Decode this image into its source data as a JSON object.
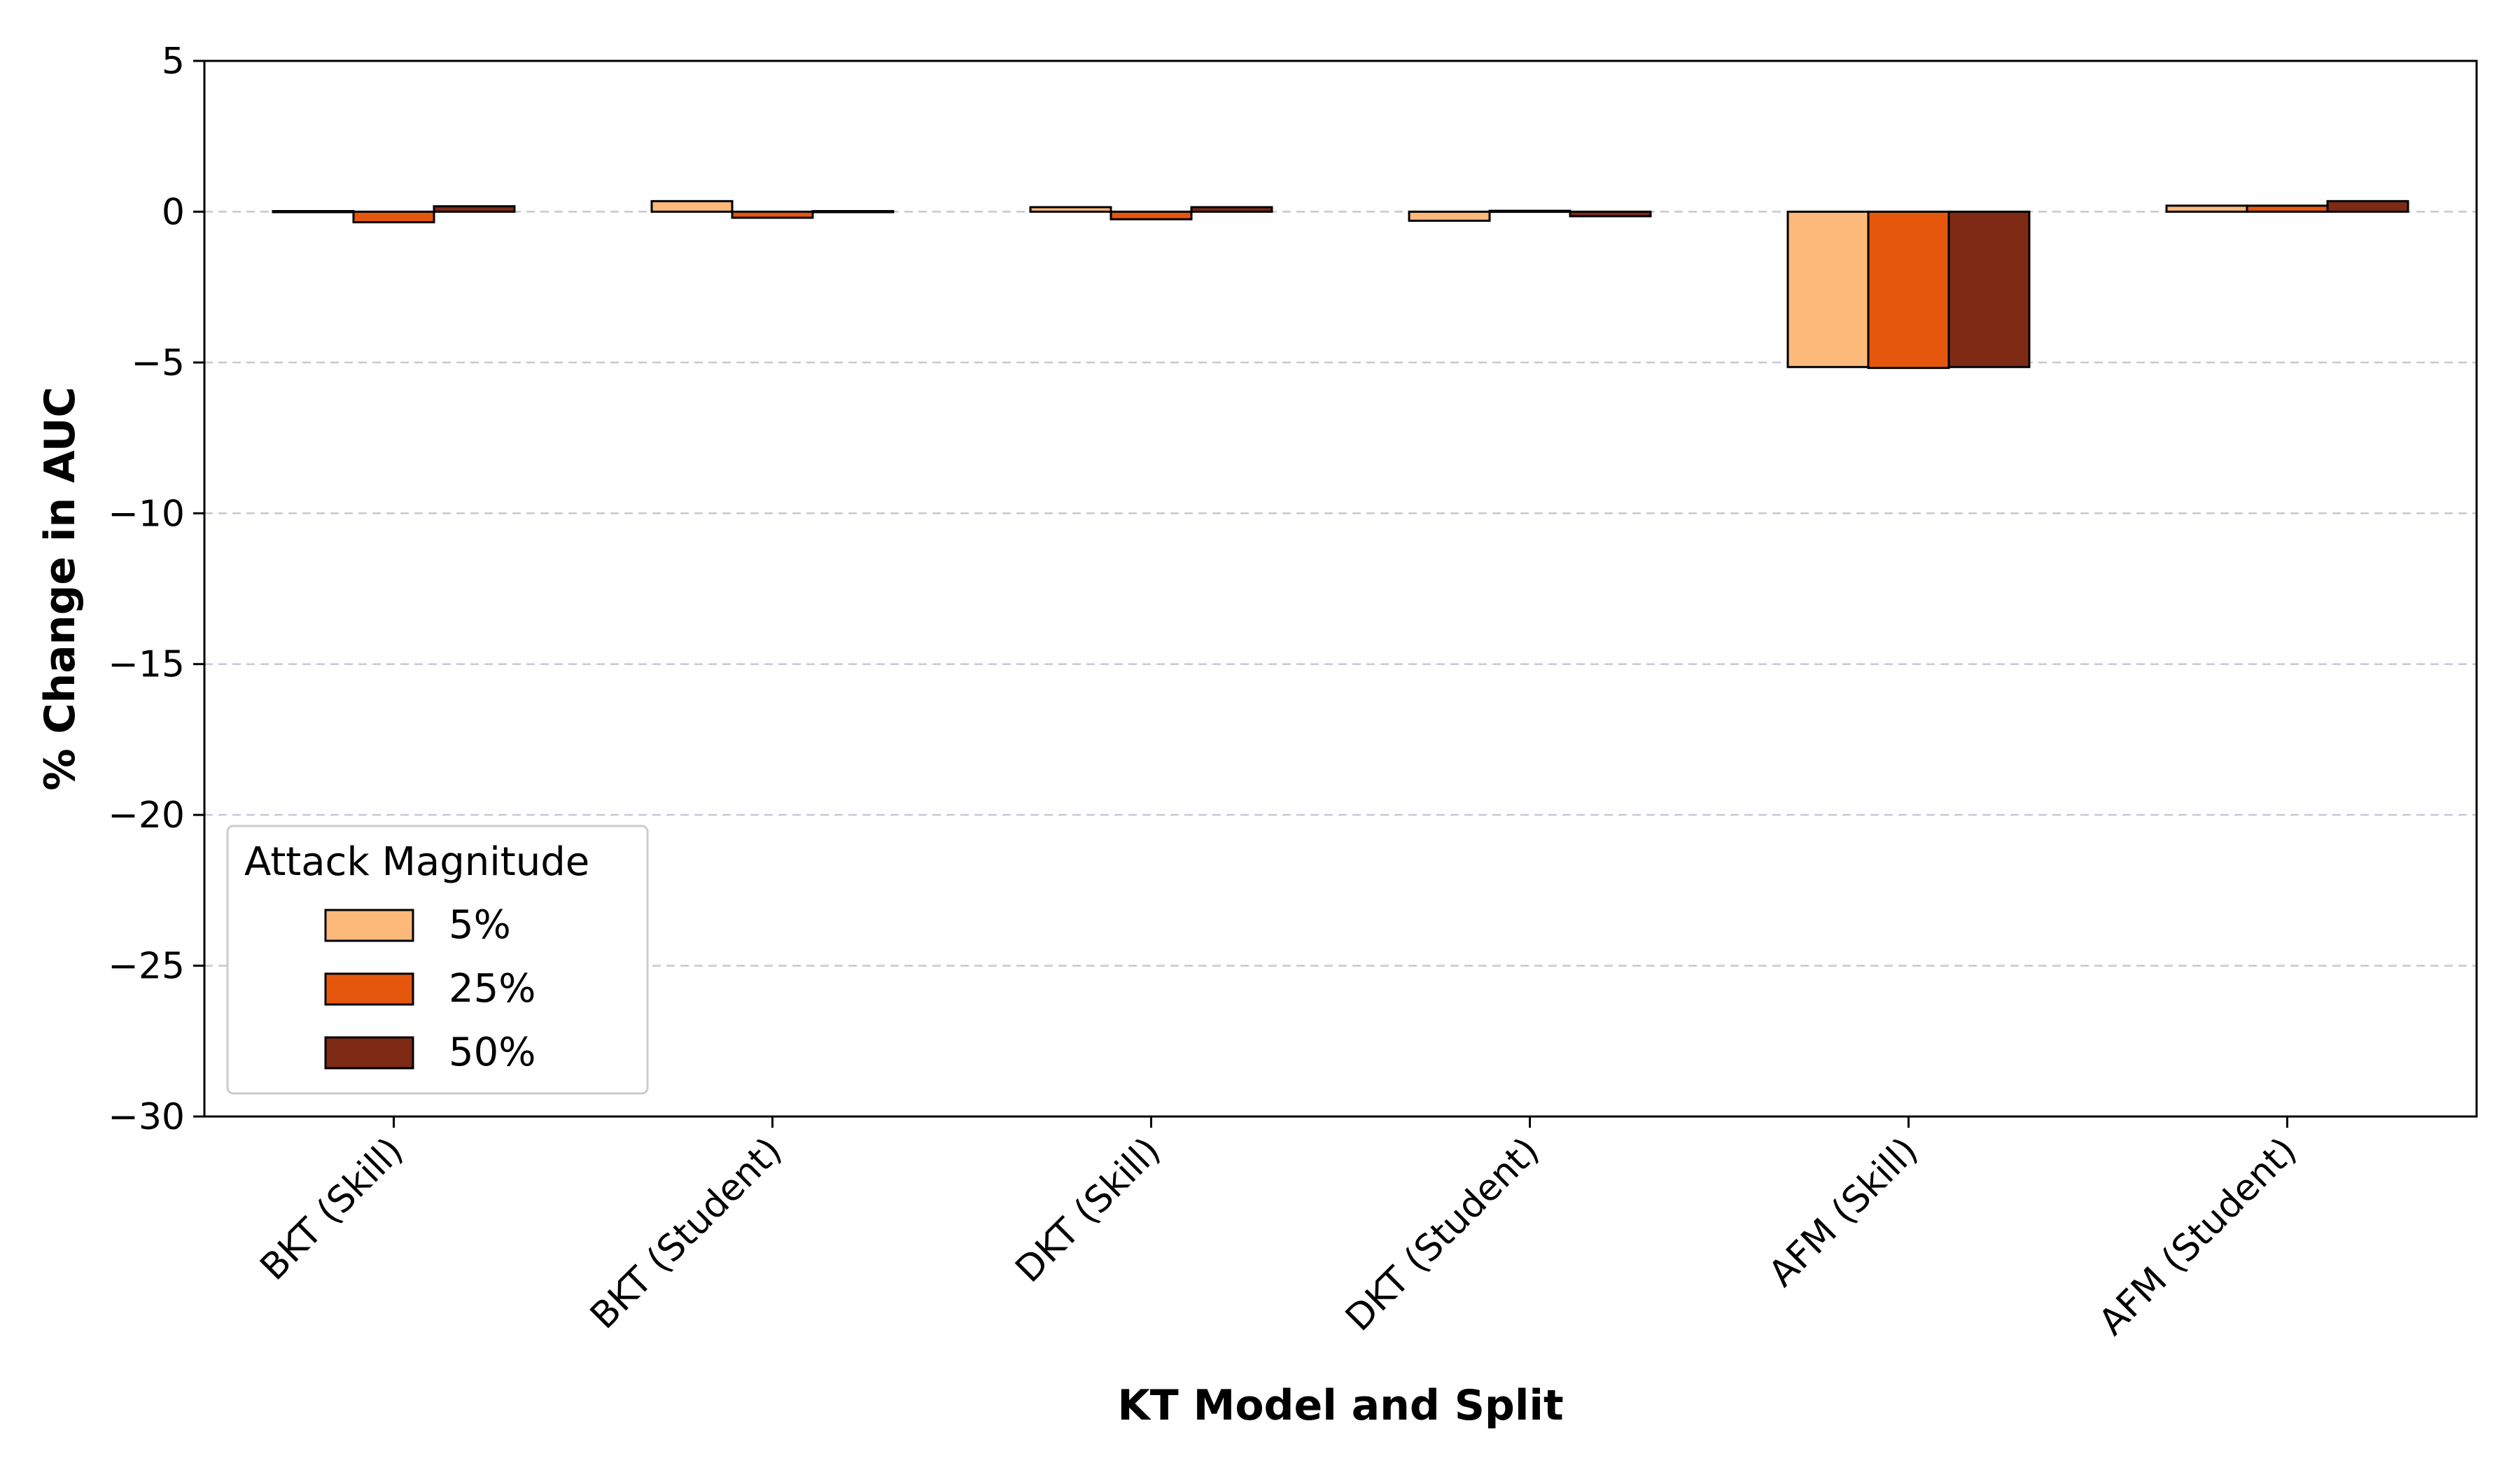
{
  "chart_data": {
    "type": "bar",
    "title": "",
    "xlabel": "KT Model and Split",
    "ylabel": "% Change in AUC",
    "categories": [
      "BKT (Skill)",
      "BKT (Student)",
      "DKT (Skill)",
      "DKT (Student)",
      "AFM (Skill)",
      "AFM (Student)"
    ],
    "series": [
      {
        "name": "5%",
        "color": "#fdb97a",
        "values": [
          0.02,
          0.35,
          0.15,
          -0.3,
          -5.15,
          0.2
        ]
      },
      {
        "name": "25%",
        "color": "#e6570e",
        "values": [
          -0.35,
          -0.2,
          -0.25,
          0.03,
          -5.18,
          0.2
        ]
      },
      {
        "name": "50%",
        "color": "#7f2a15",
        "values": [
          0.18,
          0.02,
          0.15,
          -0.15,
          -5.15,
          0.35
        ]
      }
    ],
    "ylim": [
      -30,
      5
    ],
    "yticks": [
      5,
      0,
      -5,
      -10,
      -15,
      -20,
      -25,
      -30
    ],
    "ytick_labels": [
      "5",
      "0",
      "−5",
      "−10",
      "−15",
      "−20",
      "−25",
      "−30"
    ],
    "grid": "horizontal dashed",
    "legend": {
      "title": "Attack Magnitude",
      "placement": "lower-left"
    }
  }
}
